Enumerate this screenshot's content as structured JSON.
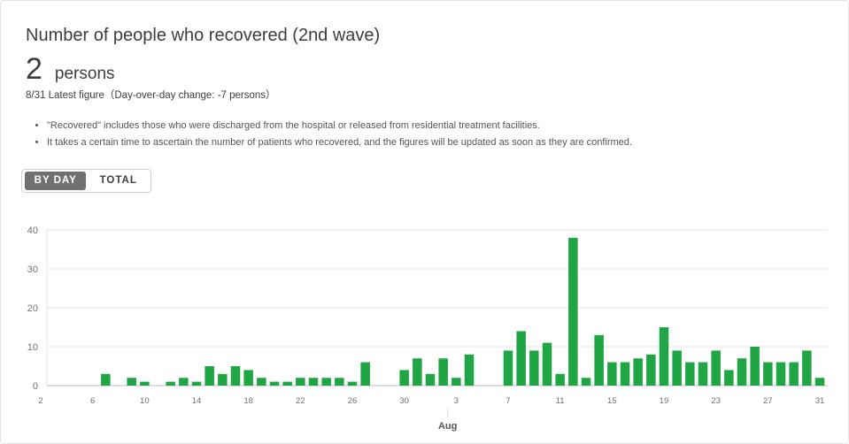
{
  "header": {
    "title": "Number of people who recovered (2nd wave)",
    "value": "2",
    "unit": "persons",
    "subtitle": "8/31 Latest figure（Day-over-day change: -7 persons）"
  },
  "notes": [
    "\"Recovered\" includes those who were discharged from the hospital or released from residential treatment facilities.",
    "It takes a certain time to ascertain the number of patients who recovered, and the figures will be updated as soon as they are confirmed."
  ],
  "toggle": {
    "by_day": "BY DAY",
    "total": "TOTAL",
    "selected": "BY DAY"
  },
  "colors": {
    "bar": "#1fa543",
    "grid": "#e6e6e6",
    "axis": "#bbbbbb",
    "tick_text": "#707070"
  },
  "chart_data": {
    "type": "bar",
    "xlabel": "",
    "ylabel": "",
    "ylim": [
      0,
      40
    ],
    "yticks": [
      0,
      10,
      20,
      30,
      40
    ],
    "month_label": "Aug",
    "categories": [
      "7/2",
      "7/3",
      "7/4",
      "7/5",
      "7/6",
      "7/7",
      "7/8",
      "7/9",
      "7/10",
      "7/11",
      "7/12",
      "7/13",
      "7/14",
      "7/15",
      "7/16",
      "7/17",
      "7/18",
      "7/19",
      "7/20",
      "7/21",
      "7/22",
      "7/23",
      "7/24",
      "7/25",
      "7/26",
      "7/27",
      "7/28",
      "7/29",
      "7/30",
      "7/31",
      "8/1",
      "8/2",
      "8/3",
      "8/4",
      "8/5",
      "8/6",
      "8/7",
      "8/8",
      "8/9",
      "8/10",
      "8/11",
      "8/12",
      "8/13",
      "8/14",
      "8/15",
      "8/16",
      "8/17",
      "8/18",
      "8/19",
      "8/20",
      "8/21",
      "8/22",
      "8/23",
      "8/24",
      "8/25",
      "8/26",
      "8/27",
      "8/28",
      "8/29",
      "8/30",
      "8/31"
    ],
    "values": [
      0,
      0,
      0,
      0,
      0,
      3,
      0,
      2,
      1,
      0,
      1,
      2,
      1,
      5,
      3,
      5,
      4,
      2,
      1,
      1,
      2,
      2,
      2,
      2,
      1,
      6,
      0,
      0,
      4,
      7,
      3,
      7,
      2,
      8,
      0,
      0,
      9,
      14,
      9,
      11,
      3,
      38,
      2,
      13,
      6,
      6,
      7,
      8,
      15,
      9,
      6,
      6,
      9,
      4,
      7,
      10,
      6,
      6,
      6,
      9,
      2
    ],
    "tick_labels": [
      {
        "index": 0,
        "label": "2"
      },
      {
        "index": 4,
        "label": "6"
      },
      {
        "index": 8,
        "label": "10"
      },
      {
        "index": 12,
        "label": "14"
      },
      {
        "index": 16,
        "label": "18"
      },
      {
        "index": 20,
        "label": "22"
      },
      {
        "index": 24,
        "label": "26"
      },
      {
        "index": 28,
        "label": "30"
      },
      {
        "index": 32,
        "label": "3"
      },
      {
        "index": 36,
        "label": "7"
      },
      {
        "index": 40,
        "label": "11"
      },
      {
        "index": 44,
        "label": "15"
      },
      {
        "index": 48,
        "label": "19"
      },
      {
        "index": 52,
        "label": "23"
      },
      {
        "index": 56,
        "label": "27"
      },
      {
        "index": 60,
        "label": "31"
      }
    ],
    "month_start_index": 30
  }
}
